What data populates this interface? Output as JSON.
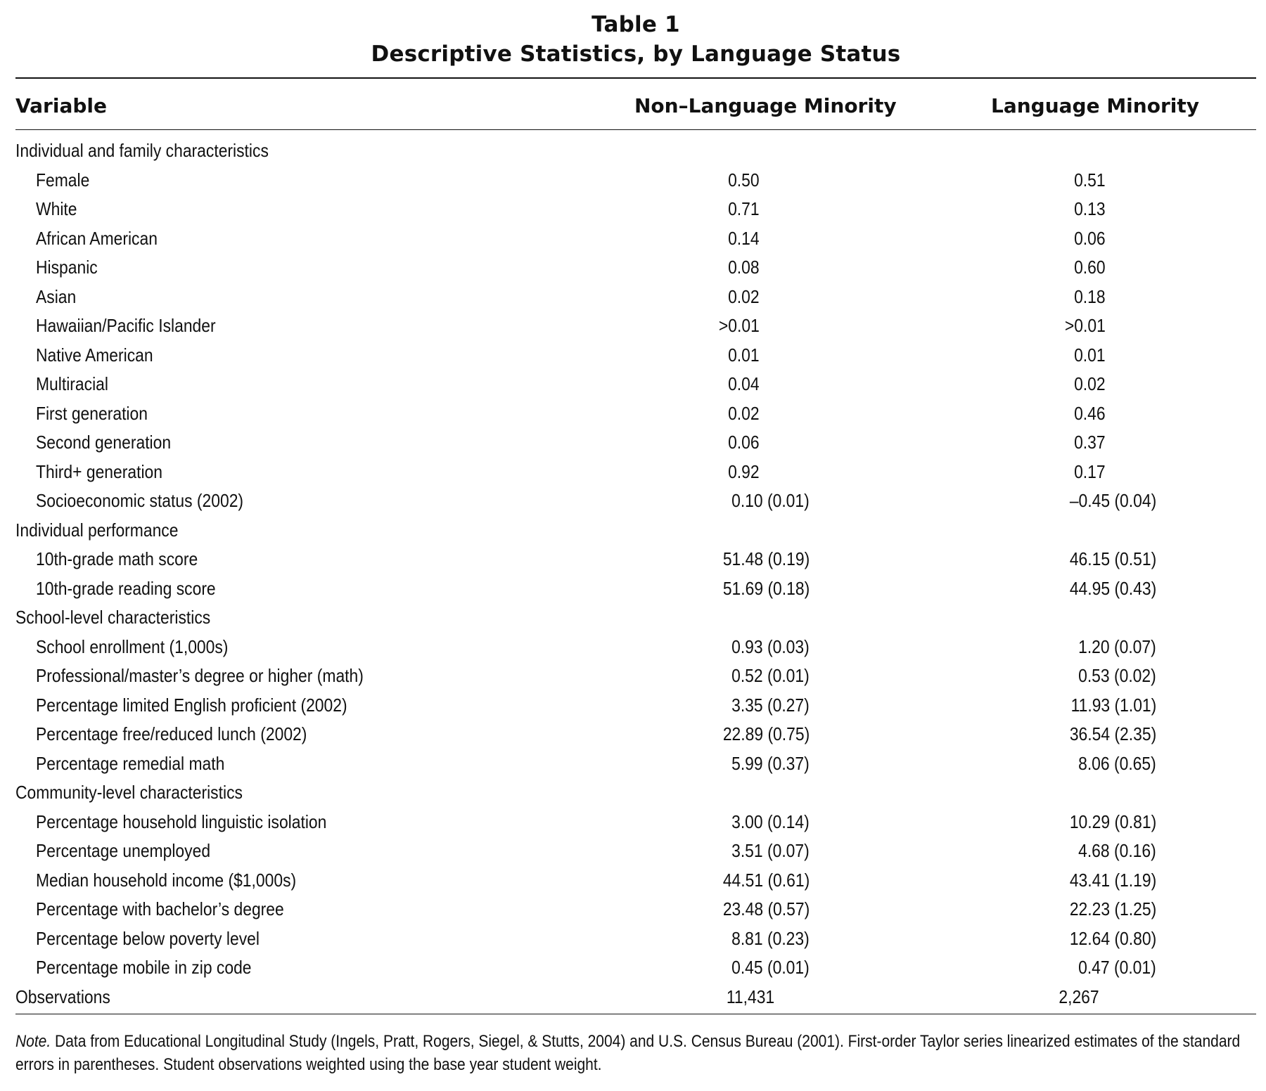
{
  "title": "Table 1",
  "subtitle": "Descriptive Statistics, by Language Status",
  "columns": {
    "variable": "Variable",
    "col1": "Non–Language Minority",
    "col2": "Language Minority"
  },
  "rows": [
    {
      "type": "section",
      "label": "Individual and family characteristics",
      "v1": "",
      "v2": ""
    },
    {
      "type": "item",
      "label": "Female",
      "v1": "0.50",
      "v2": "0.51"
    },
    {
      "type": "item",
      "label": "White",
      "v1": "0.71",
      "v2": "0.13"
    },
    {
      "type": "item",
      "label": "African American",
      "v1": "0.14",
      "v2": "0.06"
    },
    {
      "type": "item",
      "label": "Hispanic",
      "v1": "0.08",
      "v2": "0.60"
    },
    {
      "type": "item",
      "label": "Asian",
      "v1": "0.02",
      "v2": "0.18"
    },
    {
      "type": "item",
      "label": "Hawaiian/Pacific Islander",
      "v1": ">0.01",
      "v2": ">0.01"
    },
    {
      "type": "item",
      "label": "Native American",
      "v1": "0.01",
      "v2": "0.01"
    },
    {
      "type": "item",
      "label": "Multiracial",
      "v1": "0.04",
      "v2": "0.02"
    },
    {
      "type": "item",
      "label": "First generation",
      "v1": "0.02",
      "v2": "0.46"
    },
    {
      "type": "item",
      "label": "Second generation",
      "v1": "0.06",
      "v2": "0.37"
    },
    {
      "type": "item",
      "label": "Third+ generation",
      "v1": "0.92",
      "v2": "0.17"
    },
    {
      "type": "item",
      "label": "Socioeconomic status (2002)",
      "v1": "0.10 (0.01)",
      "v2": "–0.45 (0.04)"
    },
    {
      "type": "section",
      "label": "Individual performance",
      "v1": "",
      "v2": ""
    },
    {
      "type": "item",
      "label": "10th-grade math score",
      "v1": "51.48 (0.19)",
      "v2": "46.15 (0.51)"
    },
    {
      "type": "item",
      "label": "10th-grade reading score",
      "v1": "51.69 (0.18)",
      "v2": "44.95 (0.43)"
    },
    {
      "type": "section",
      "label": "School-level characteristics",
      "v1": "",
      "v2": ""
    },
    {
      "type": "item",
      "label": "School enrollment (1,000s)",
      "v1": "0.93 (0.03)",
      "v2": "1.20 (0.07)"
    },
    {
      "type": "item",
      "label": "Professional/master’s degree or higher (math)",
      "v1": "0.52 (0.01)",
      "v2": "0.53 (0.02)"
    },
    {
      "type": "item",
      "label": "Percentage limited English proficient (2002)",
      "v1": "3.35 (0.27)",
      "v2": "11.93 (1.01)"
    },
    {
      "type": "item",
      "label": "Percentage free/reduced lunch (2002)",
      "v1": "22.89 (0.75)",
      "v2": "36.54 (2.35)"
    },
    {
      "type": "item",
      "label": "Percentage remedial math",
      "v1": "5.99 (0.37)",
      "v2": "8.06 (0.65)"
    },
    {
      "type": "section",
      "label": "Community-level characteristics",
      "v1": "",
      "v2": ""
    },
    {
      "type": "item",
      "label": "Percentage household linguistic isolation",
      "v1": "3.00 (0.14)",
      "v2": "10.29 (0.81)"
    },
    {
      "type": "item",
      "label": "Percentage unemployed",
      "v1": "3.51 (0.07)",
      "v2": "4.68 (0.16)"
    },
    {
      "type": "item",
      "label": "Median household income ($1,000s)",
      "v1": "44.51 (0.61)",
      "v2": "43.41 (1.19)"
    },
    {
      "type": "item",
      "label": "Percentage with bachelor’s degree",
      "v1": "23.48 (0.57)",
      "v2": "22.23 (1.25)"
    },
    {
      "type": "item",
      "label": "Percentage below poverty level",
      "v1": "8.81 (0.23)",
      "v2": "12.64 (0.80)"
    },
    {
      "type": "item",
      "label": "Percentage mobile in zip code",
      "v1": "0.45 (0.01)",
      "v2": "0.47 (0.01)"
    },
    {
      "type": "section",
      "label": "Observations",
      "v1": "11,431",
      "v2": "2,267",
      "align": "center"
    }
  ],
  "note": {
    "lead": "Note.",
    "text": " Data from Educational Longitudinal Study (Ingels, Pratt, Rogers, Siegel, & Stutts, 2004) and U.S. Census Bureau (2001). First-order Taylor series linearized estimates of the standard errors in parentheses. Student observations weighted using the base year student weight."
  }
}
